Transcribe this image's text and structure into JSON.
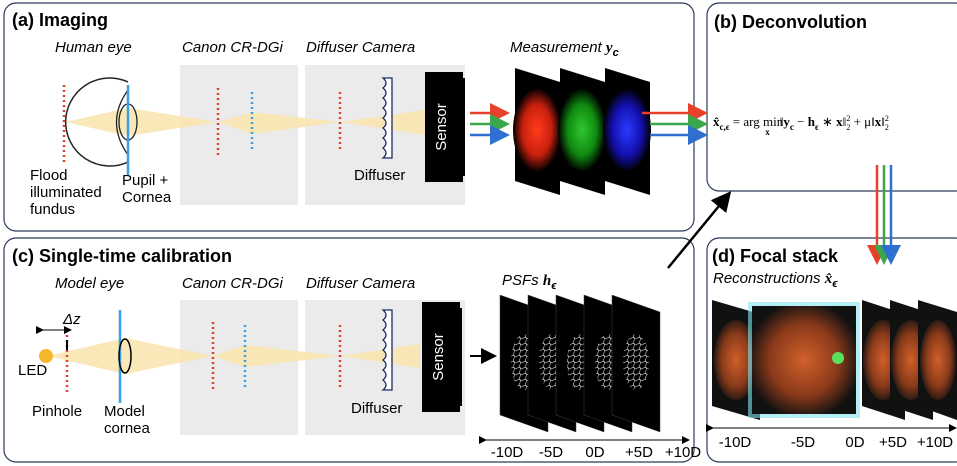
{
  "panels": {
    "a": {
      "title": "(a) Imaging",
      "human_eye": "Human eye",
      "canon": "Canon CR-DGi",
      "diffuser_camera": "Diffuser Camera",
      "measurement": "Measurement",
      "measurement_symbol": "y",
      "measurement_sub": "c",
      "sensor": "Sensor",
      "diffuser": "Diffuser",
      "fundus": [
        "Flood",
        "illuminated",
        "fundus"
      ],
      "pupil": [
        "Pupil +",
        "Cornea"
      ]
    },
    "b": {
      "title": "(b) Deconvolution",
      "equation": [
        "x̂",
        "c,ϵ",
        " = arg min",
        "x",
        "‖",
        "y",
        "c",
        " − ",
        "h",
        "ϵ",
        " ∗ ",
        "x",
        "‖",
        "2",
        "2",
        " + μ‖",
        "x",
        "‖",
        "2",
        "2"
      ]
    },
    "c": {
      "title": "(c) Single-time calibration",
      "model_eye": "Model eye",
      "canon": "Canon CR-DGi",
      "diffuser_camera": "Diffuser Camera",
      "psfs": "PSFs",
      "psfs_symbol": "h",
      "psfs_sub": "ϵ",
      "delta_z": "Δz",
      "led": "LED",
      "pinhole": "Pinhole",
      "model_cornea": [
        "Model",
        "cornea"
      ],
      "sensor": "Sensor",
      "diffuser": "Diffuser",
      "axis_labels": [
        "-10D",
        "-5D",
        "0D",
        "+5D",
        "+10D"
      ]
    },
    "d": {
      "title": "(d) Focal stack",
      "reconstructions": "Reconstructions",
      "reconstructions_symbol": "x̂",
      "reconstructions_sub": "ϵ",
      "axis_labels": [
        "-10D",
        "-5D",
        "0D",
        "+5D",
        "+10D"
      ]
    }
  }
}
